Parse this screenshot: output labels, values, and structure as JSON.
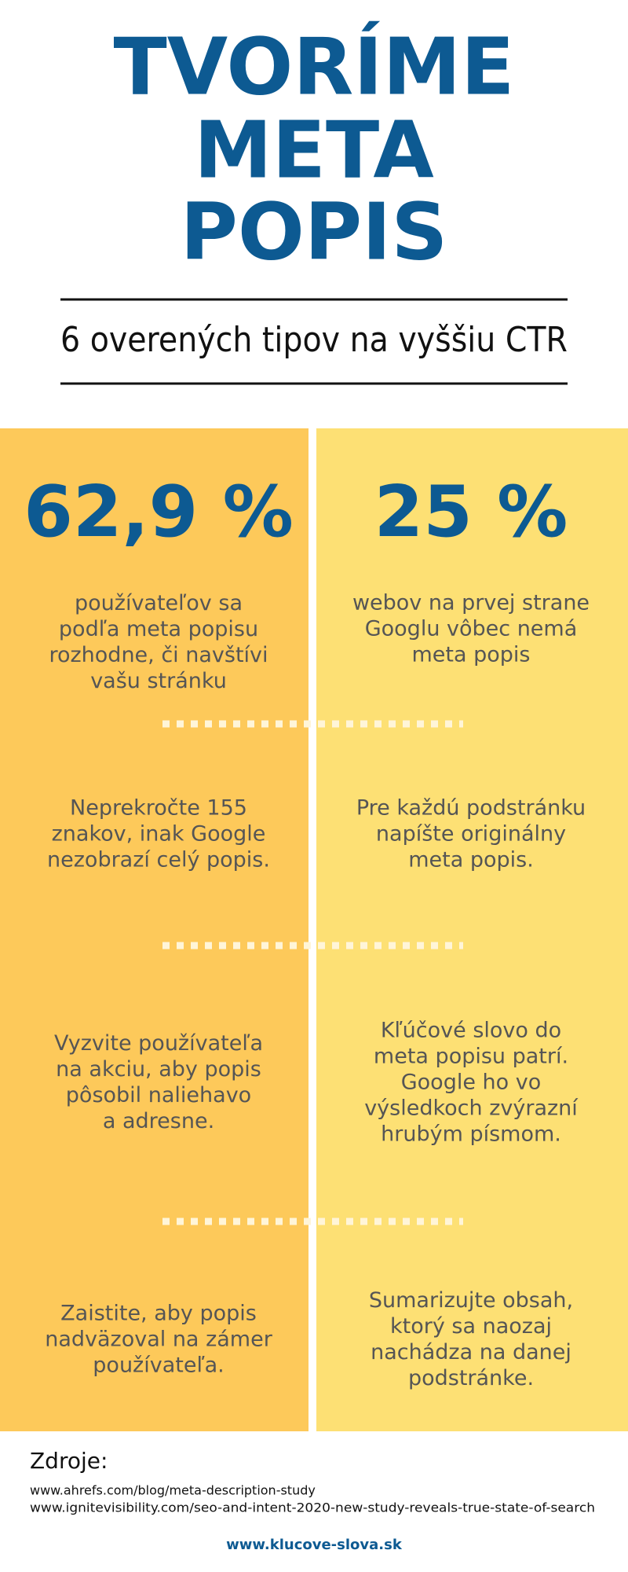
{
  "header": {
    "title": [
      "TVORÍME",
      "META",
      "POPIS"
    ],
    "subtitle": "6 overených tipov na vyššiu CTR"
  },
  "stats": [
    {
      "value": "62,9 %",
      "lines": [
        "používateľov sa",
        "podľa meta popisu",
        "rozhodne, či navštívi",
        "vašu stránku"
      ]
    },
    {
      "value": "25 %",
      "lines": [
        "webov na prvej strane",
        "Googlu vôbec nemá",
        "meta popis"
      ]
    }
  ],
  "tips": [
    {
      "lines": [
        "Neprekročte 155",
        "znakov, inak Google",
        "nezobrazí celý popis."
      ]
    },
    {
      "lines": [
        "Pre každú podstránku",
        "napíšte originálny",
        "meta popis."
      ]
    },
    {
      "lines": [
        "Vyzvite používateľa",
        "na akciu, aby popis",
        "pôsobil naliehavo",
        "a adresne."
      ]
    },
    {
      "lines": [
        "Kľúčové slovo do",
        "meta popisu patrí.",
        "Google ho vo",
        "výsledkoch zvýrazní",
        "hrubým písmom."
      ]
    },
    {
      "lines": [
        "Zaistite, aby popis",
        "nadväzoval na zámer",
        "používateľa."
      ]
    },
    {
      "lines": [
        "Sumarizujte obsah,",
        "ktorý sa naozaj",
        "nachádza na danej",
        "podstránke."
      ]
    }
  ],
  "sources": {
    "heading": "Zdroje:",
    "items": [
      "www.ahrefs.com/blog/meta-description-study",
      "www.ignitevisibility.com/seo-and-intent-2020-new-study-reveals-true-state-of-search"
    ]
  },
  "footer": "www.klucove-slova.sk"
}
